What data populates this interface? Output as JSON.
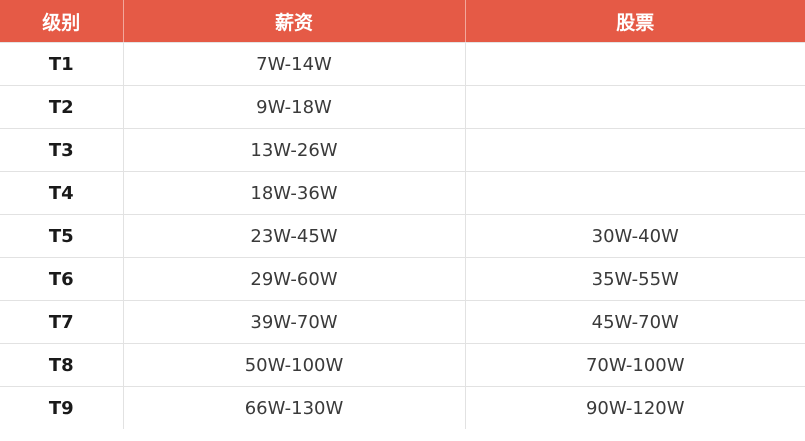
{
  "headers": [
    "级别",
    "薪资",
    "股票"
  ],
  "rows": [
    {
      "level": "T1",
      "salary": "7W-14W",
      "stock": ""
    },
    {
      "level": "T2",
      "salary": "9W-18W",
      "stock": ""
    },
    {
      "level": "T3",
      "salary": "13W-26W",
      "stock": ""
    },
    {
      "level": "T4",
      "salary": "18W-36W",
      "stock": ""
    },
    {
      "level": "T5",
      "salary": "23W-45W",
      "stock": "30W-40W"
    },
    {
      "level": "T6",
      "salary": "29W-60W",
      "stock": "35W-55W"
    },
    {
      "level": "T7",
      "salary": "39W-70W",
      "stock": "45W-70W"
    },
    {
      "level": "T8",
      "salary": "50W-100W",
      "stock": "70W-100W"
    },
    {
      "level": "T9",
      "salary": "66W-130W",
      "stock": "90W-120W"
    }
  ],
  "colors": {
    "header_bg": "#e55a46",
    "header_text": "#ffffff",
    "grid": "#e2e2e2"
  }
}
